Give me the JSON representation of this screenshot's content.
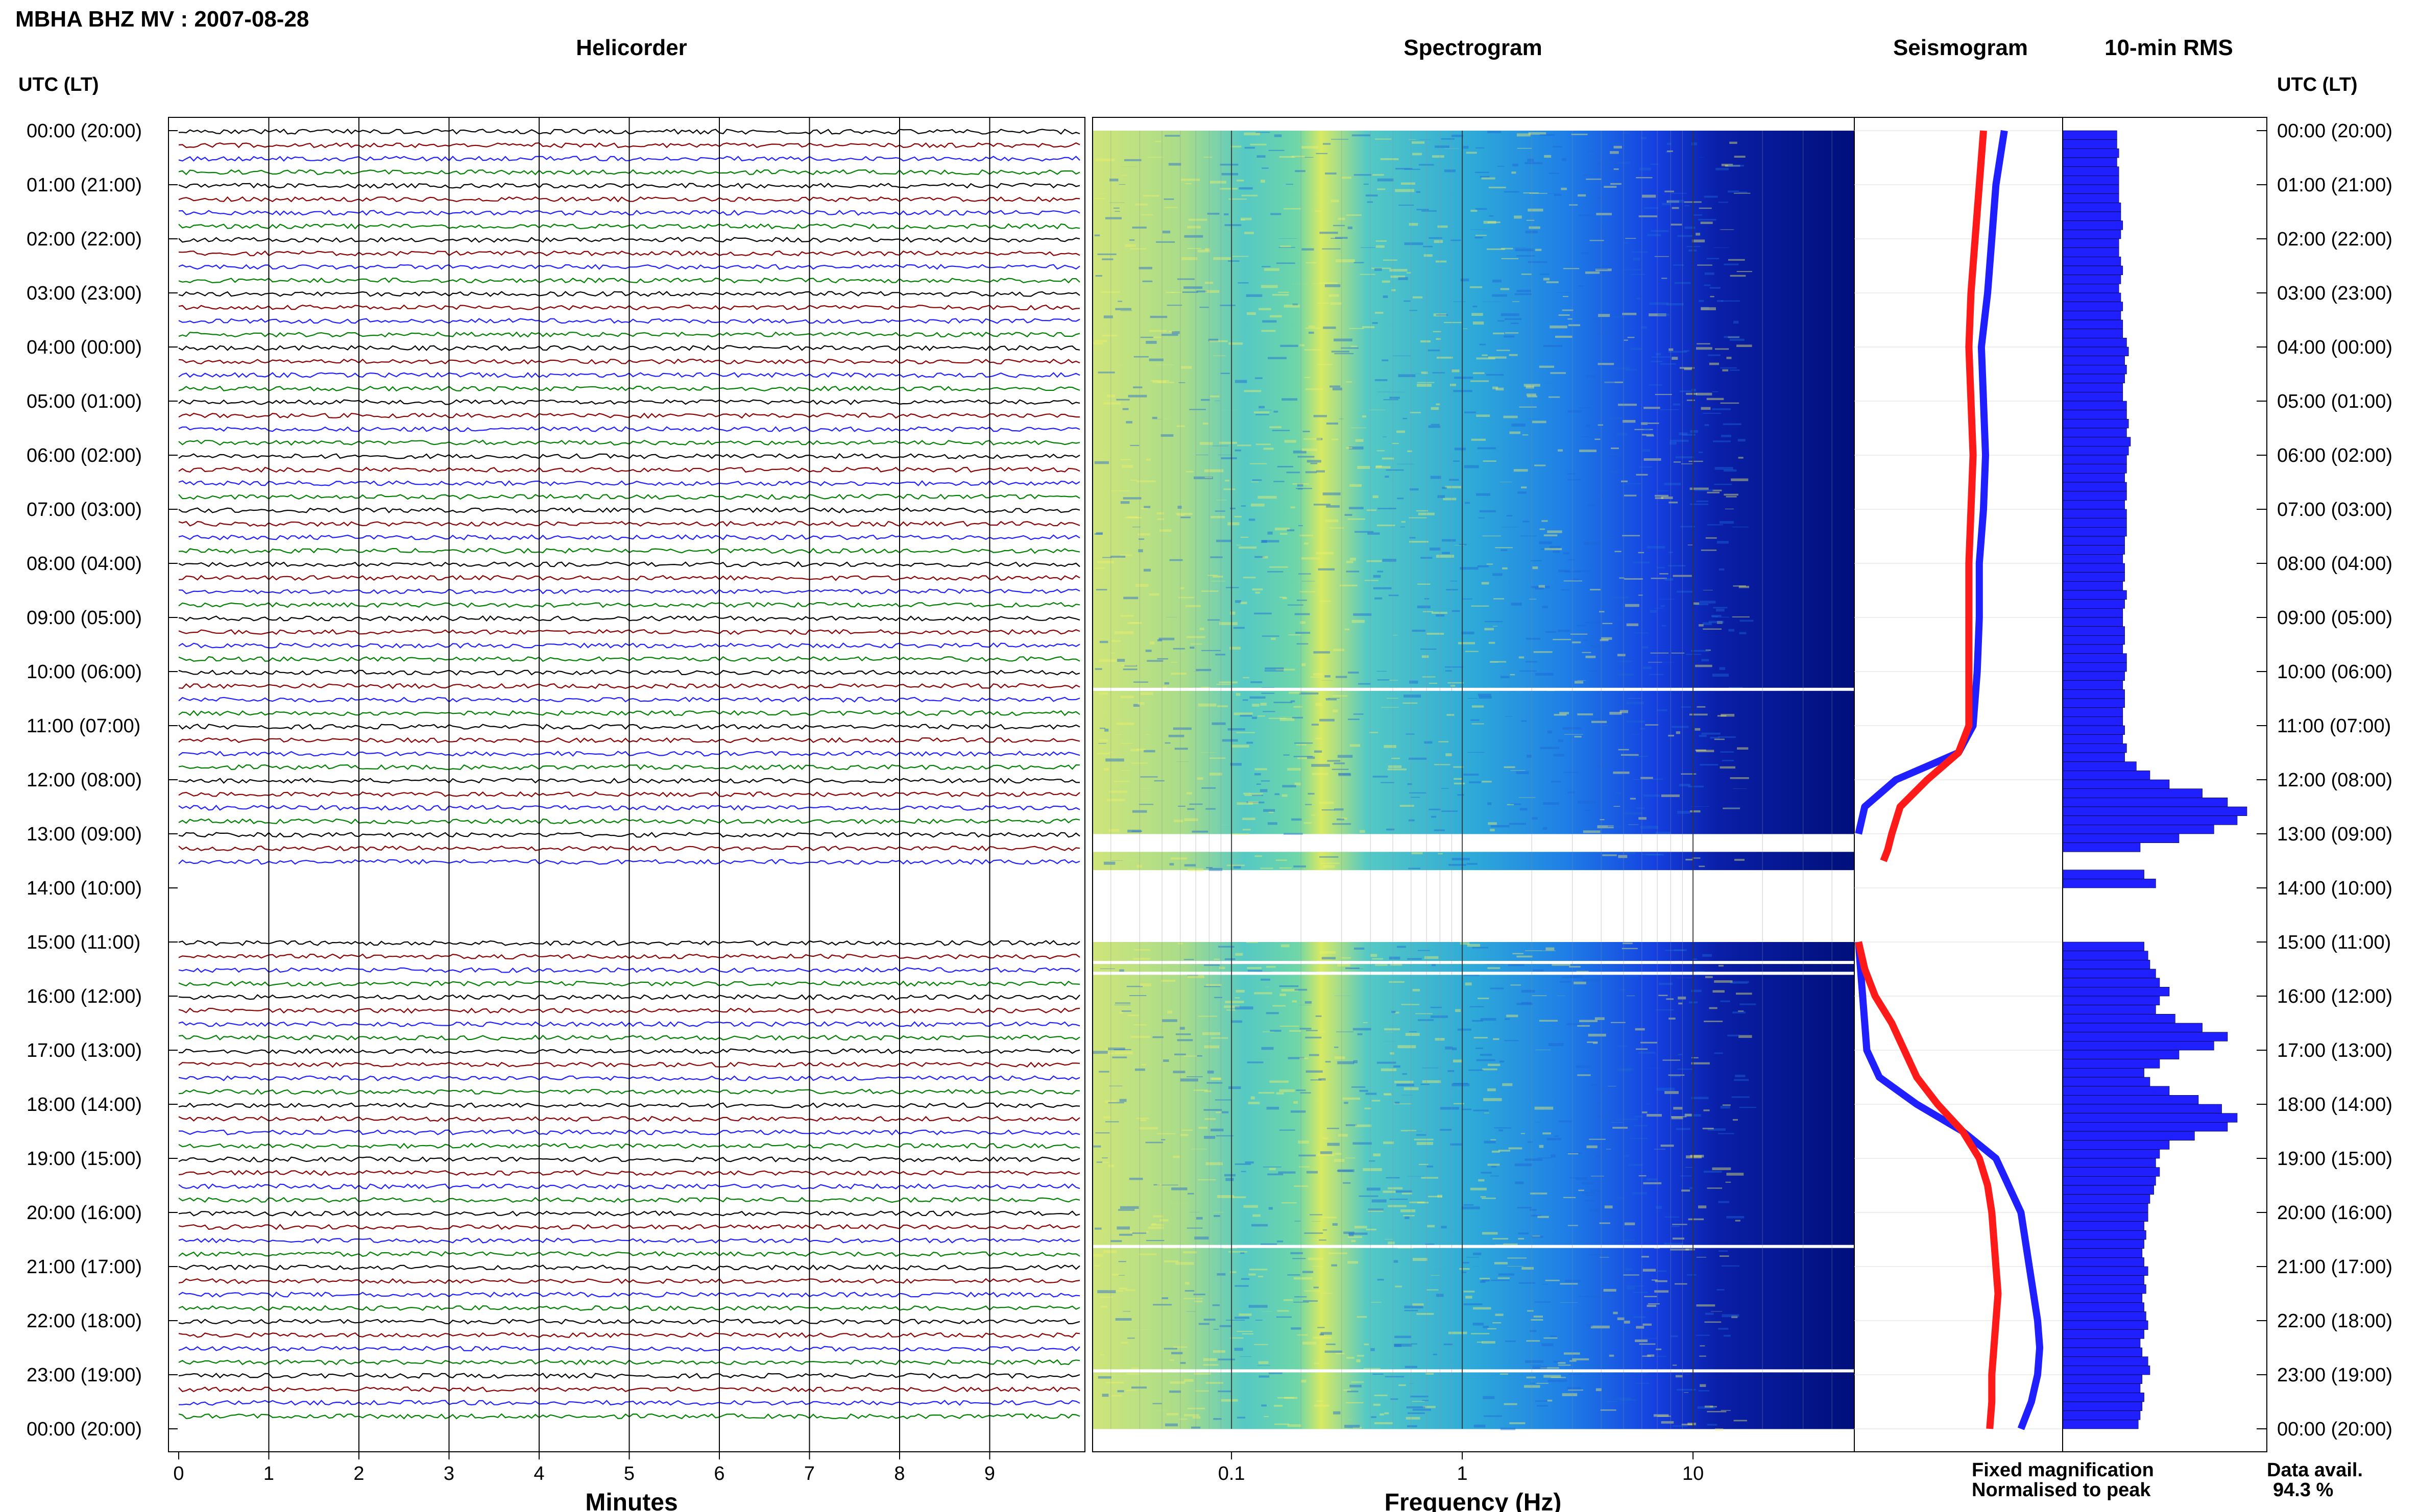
{
  "title": "MBHA BHZ MV : 2007-08-28",
  "panels": {
    "helicorder": "Helicorder",
    "spectrogram": "Spectrogram",
    "seismogram": "Seismogram",
    "rms": "10-min RMS"
  },
  "time_axis_title": "UTC (LT)",
  "time_labels": [
    "00:00 (20:00)",
    "01:00 (21:00)",
    "02:00 (22:00)",
    "03:00 (23:00)",
    "04:00 (00:00)",
    "05:00 (01:00)",
    "06:00 (02:00)",
    "07:00 (03:00)",
    "08:00 (04:00)",
    "09:00 (05:00)",
    "10:00 (06:00)",
    "11:00 (07:00)",
    "12:00 (08:00)",
    "13:00 (09:00)",
    "14:00 (10:00)",
    "15:00 (11:00)",
    "16:00 (12:00)",
    "17:00 (13:00)",
    "18:00 (14:00)",
    "19:00 (15:00)",
    "20:00 (16:00)",
    "21:00 (17:00)",
    "22:00 (18:00)",
    "23:00 (19:00)",
    "00:00 (20:00)"
  ],
  "x_axis": {
    "minutes_label": "Minutes",
    "minutes_ticks": [
      "0",
      "1",
      "2",
      "3",
      "4",
      "5",
      "6",
      "7",
      "8",
      "9"
    ],
    "frequency_label": "Frequency (Hz)",
    "frequency_ticks": [
      "0.1",
      "1",
      "10"
    ]
  },
  "legend": {
    "fixed": "Fixed magnification",
    "normalised": "Normalised to peak",
    "fixed_color": "#1f1fff",
    "normalised_color": "#ff1a1a"
  },
  "availability": {
    "label": "Data avail.",
    "value": "94.3 %"
  },
  "trace_colors": [
    "#000000",
    "#8b0000",
    "#1f1fff",
    "#008000"
  ],
  "chart_data": [
    {
      "type": "heatmap",
      "title": "Spectrogram",
      "xlabel": "Frequency (Hz)",
      "xscale": "log",
      "xlim": [
        0.025,
        50
      ],
      "ylim_hours": [
        0,
        24
      ],
      "gaps_hours": [
        [
          13.0,
          13.25
        ],
        [
          13.6,
          15.0
        ]
      ]
    },
    {
      "type": "line",
      "title": "Seismogram",
      "series": [
        {
          "name": "Fixed magnification",
          "color": "#1f1fff",
          "hours": [
            0,
            1,
            2,
            3,
            4,
            5,
            6,
            7,
            8,
            9,
            10,
            11,
            11.5,
            12,
            12.5,
            13.0,
            15.0,
            15.5,
            16,
            16.5,
            17,
            17.5,
            18,
            18.5,
            19,
            19.5,
            20,
            20.5,
            21,
            21.5,
            22,
            22.5,
            23,
            23.5,
            24
          ],
          "values": [
            0.72,
            0.68,
            0.66,
            0.64,
            0.61,
            0.62,
            0.63,
            0.62,
            0.6,
            0.6,
            0.59,
            0.57,
            0.5,
            0.2,
            0.05,
            0.02,
            0.02,
            0.03,
            0.04,
            0.05,
            0.06,
            0.12,
            0.3,
            0.52,
            0.68,
            0.74,
            0.8,
            0.82,
            0.84,
            0.86,
            0.88,
            0.89,
            0.88,
            0.85,
            0.8
          ]
        },
        {
          "name": "Normalised to peak",
          "color": "#ff1a1a",
          "hours": [
            0,
            1,
            2,
            3,
            4,
            5,
            6,
            7,
            8,
            9,
            10,
            11,
            11.5,
            12,
            12.5,
            13.0,
            13.3,
            13.5,
            15.0,
            15.5,
            16,
            16.5,
            17,
            17.5,
            18,
            18.5,
            19,
            19.5,
            20,
            20.5,
            21,
            21.5,
            22,
            22.5,
            23,
            23.5,
            24
          ],
          "values": [
            0.62,
            0.6,
            0.58,
            0.56,
            0.55,
            0.56,
            0.57,
            0.56,
            0.55,
            0.55,
            0.55,
            0.55,
            0.5,
            0.35,
            0.22,
            0.18,
            0.16,
            0.14,
            0.02,
            0.05,
            0.1,
            0.18,
            0.24,
            0.3,
            0.4,
            0.52,
            0.6,
            0.64,
            0.66,
            0.67,
            0.68,
            0.69,
            0.68,
            0.67,
            0.66,
            0.66,
            0.65
          ]
        }
      ]
    },
    {
      "type": "bar",
      "title": "10-min RMS",
      "hour_start": 0,
      "interval_minutes": 10,
      "values": [
        0.28,
        0.28,
        0.29,
        0.28,
        0.29,
        0.29,
        0.29,
        0.29,
        0.3,
        0.3,
        0.31,
        0.3,
        0.29,
        0.29,
        0.3,
        0.31,
        0.3,
        0.29,
        0.3,
        0.31,
        0.3,
        0.31,
        0.31,
        0.33,
        0.34,
        0.32,
        0.33,
        0.32,
        0.31,
        0.31,
        0.33,
        0.33,
        0.34,
        0.33,
        0.35,
        0.34,
        0.33,
        0.33,
        0.32,
        0.33,
        0.33,
        0.32,
        0.33,
        0.33,
        0.33,
        0.32,
        0.32,
        0.31,
        0.32,
        0.32,
        0.31,
        0.33,
        0.32,
        0.31,
        0.31,
        0.32,
        0.32,
        0.31,
        0.33,
        0.33,
        0.32,
        0.31,
        0.32,
        0.32,
        0.31,
        0.31,
        0.32,
        0.31,
        0.33,
        0.32,
        0.38,
        0.45,
        0.55,
        0.72,
        0.85,
        0.95,
        0.9,
        0.78,
        0.6,
        0.4,
        0.0,
        0.0,
        0.42,
        0.48,
        0.0,
        0.0,
        0.0,
        0.0,
        0.0,
        0.0,
        0.42,
        0.44,
        0.45,
        0.48,
        0.5,
        0.55,
        0.5,
        0.48,
        0.58,
        0.72,
        0.85,
        0.78,
        0.6,
        0.5,
        0.42,
        0.45,
        0.55,
        0.7,
        0.82,
        0.9,
        0.85,
        0.68,
        0.55,
        0.5,
        0.48,
        0.5,
        0.48,
        0.47,
        0.45,
        0.44,
        0.44,
        0.42,
        0.43,
        0.42,
        0.41,
        0.42,
        0.44,
        0.42,
        0.43,
        0.41,
        0.42,
        0.43,
        0.44,
        0.42,
        0.4,
        0.41,
        0.44,
        0.45,
        0.41,
        0.4,
        0.42,
        0.41,
        0.4,
        0.39
      ]
    }
  ]
}
